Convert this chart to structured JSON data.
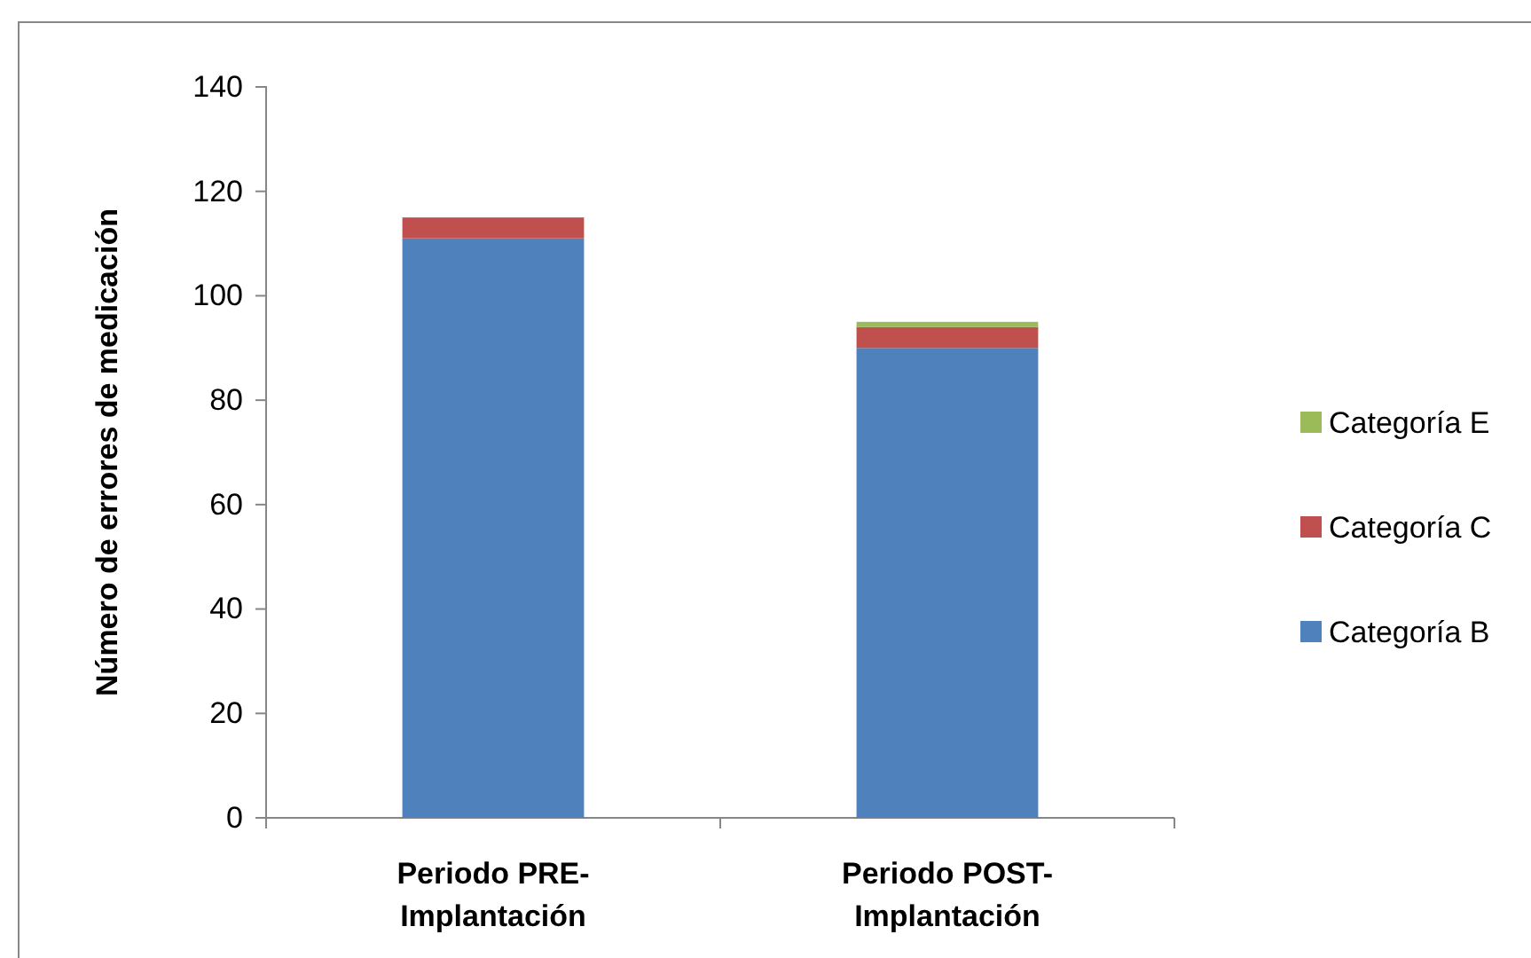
{
  "chart_data": {
    "type": "bar",
    "stacked": true,
    "ylabel": "Número de errores de medicación",
    "categories": [
      "Periodo PRE-Implantación",
      "Periodo POST-Implantación"
    ],
    "series": [
      {
        "name": "Categoría B",
        "color": "#4f81bd",
        "values": [
          111,
          90
        ]
      },
      {
        "name": "Categoría C",
        "color": "#c0504d",
        "values": [
          4,
          4
        ]
      },
      {
        "name": "Categoría E",
        "color": "#9bbb59",
        "values": [
          null,
          1
        ]
      }
    ],
    "ylim": [
      0,
      140
    ],
    "yticks": [
      0,
      20,
      40,
      60,
      80,
      100,
      120,
      140
    ],
    "grid": false,
    "legend": "right"
  }
}
